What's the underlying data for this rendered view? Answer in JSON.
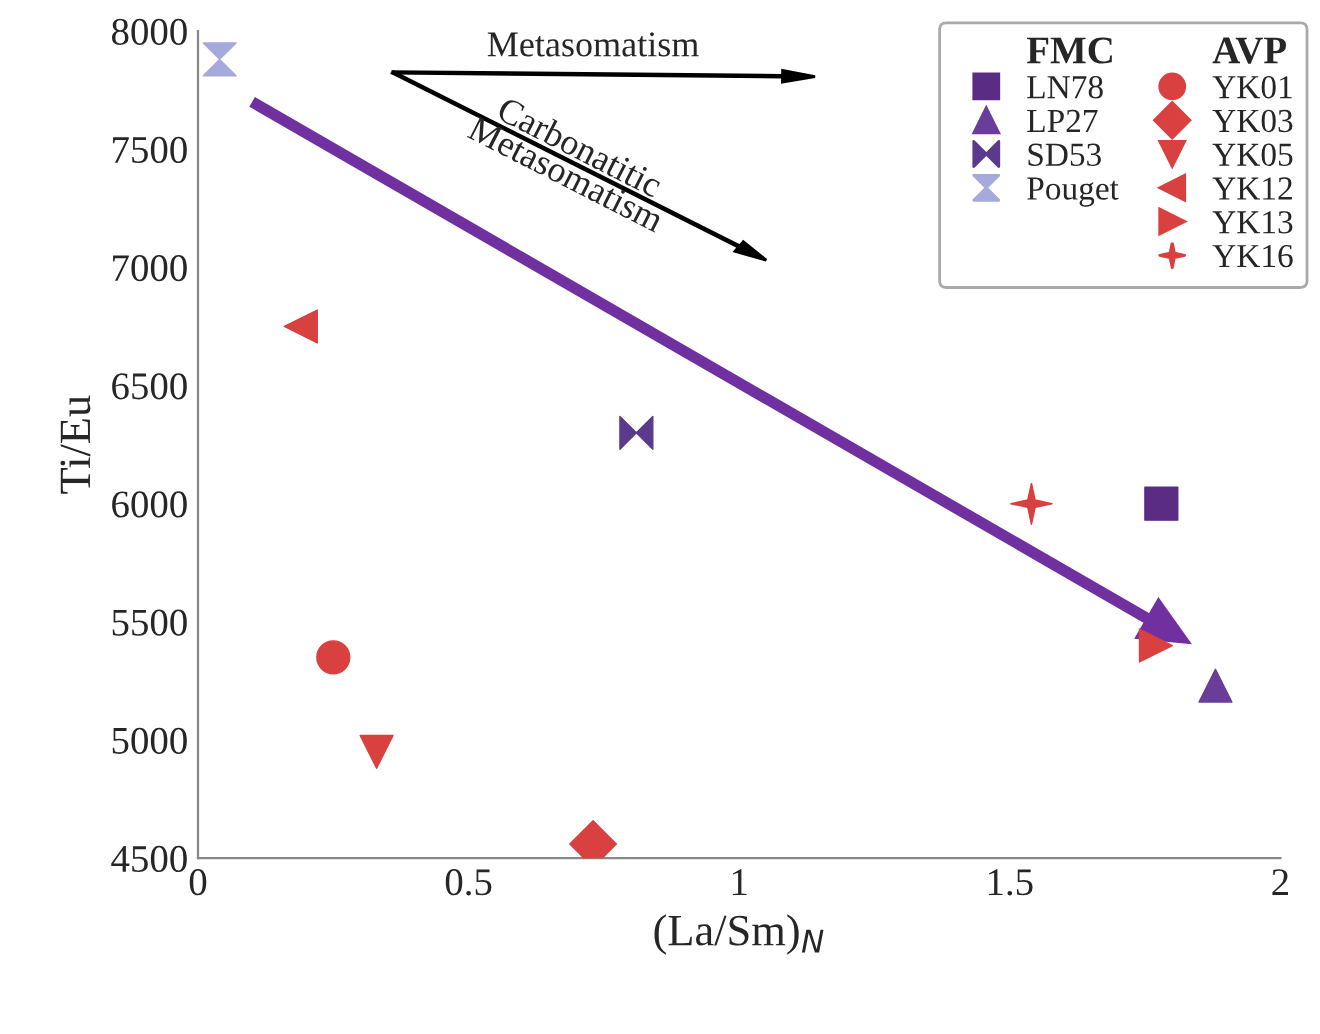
{
  "chart_data": {
    "type": "scatter",
    "xlabel": "(La/Sm)$_{N}$",
    "ylabel": "Ti/Eu",
    "xlim": [
      0,
      2
    ],
    "xticks": [
      0,
      0.5,
      1,
      1.5,
      2
    ],
    "ylim": [
      4500,
      8000
    ],
    "yticks": [
      4500,
      5000,
      5500,
      6000,
      6500,
      7000,
      7500,
      8000
    ],
    "grid": false,
    "legend": "top right",
    "annotations": [
      "Metasomatism",
      "Carbonatitic\nMetasomatism",
      "FMC",
      "AVP"
    ],
    "series": [
      {
        "name": "LN78",
        "color": "#5b2c83",
        "marker": "square",
        "x": [
          1.78
        ],
        "values": [
          6000
        ]
      },
      {
        "name": "LP27",
        "color": "#6a3d9a",
        "marker": "triangle",
        "x": [
          1.88
        ],
        "values": [
          5230
        ]
      },
      {
        "name": "SD53",
        "color": "#5b3a8c",
        "x": [
          0.81
        ],
        "values": [
          6300
        ]
      },
      {
        "name": "Pouget",
        "color": "#a5a9db",
        "x": [
          0.04
        ],
        "values": [
          7880
        ]
      },
      {
        "name": "YK01",
        "color": "#d94040",
        "marker": "circle",
        "x": [
          0.25
        ],
        "values": [
          5350
        ]
      },
      {
        "name": "YK03",
        "color": "#d94040",
        "marker": "diamond",
        "x": [
          0.73
        ],
        "values": [
          4560
        ]
      },
      {
        "name": "YK05",
        "color": "#d94040",
        "marker": "triangle_down",
        "x": [
          0.33
        ],
        "values": [
          4950
        ]
      },
      {
        "name": "YK12",
        "color": "#d94040",
        "marker": "triangle_left",
        "x": [
          0.19
        ],
        "values": [
          6750
        ]
      },
      {
        "name": "YK13",
        "color": "#d94040",
        "marker": "triangle_right",
        "x": [
          1.77
        ],
        "values": [
          5400
        ]
      },
      {
        "name": "YK16",
        "color": "#d94040",
        "marker": "star",
        "x": [
          1.54
        ],
        "values": [
          6000
        ]
      },
      {
        "type": "line",
        "color": "#7030a0",
        "x": [
          0.1,
          1.78
        ],
        "values": [
          7700,
          5480
        ]
      }
    ]
  }
}
